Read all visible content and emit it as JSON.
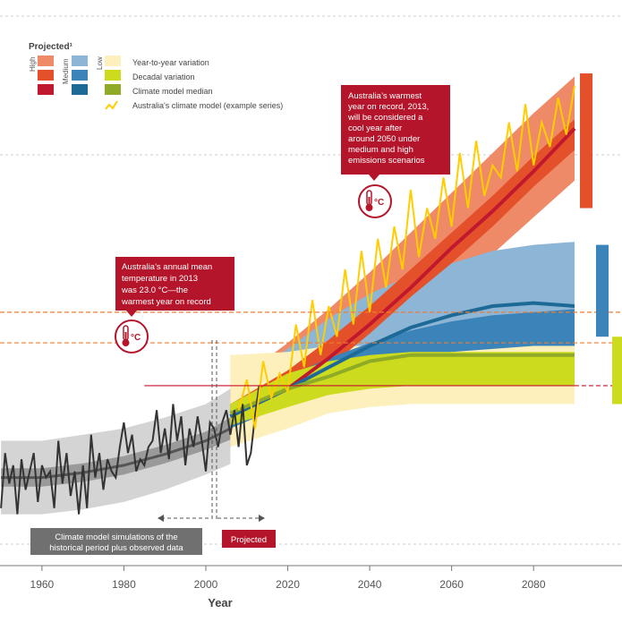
{
  "chart_data": {
    "type": "line",
    "xlabel": "Year",
    "ylabel": "",
    "x_ticks": [
      1960,
      1980,
      2000,
      2020,
      2040,
      2060,
      2080
    ],
    "xlim": [
      1955,
      2100
    ],
    "ylim": [
      20.5,
      27.5
    ],
    "reference_lines": [
      {
        "name": "2013 record",
        "value": 23.0,
        "color": "#c8102e"
      },
      {
        "name": "upper dashed",
        "value": 24.2,
        "color": "#f07d32"
      },
      {
        "name": "lower dashed",
        "value": 23.7,
        "color": "#f07d32"
      }
    ],
    "colors": {
      "high_light": "#ef8a68",
      "high_mid": "#e4502a",
      "high_dark": "#c0182e",
      "med_light": "#8db5d6",
      "med_mid": "#3a84b9",
      "med_dark": "#1e6a96",
      "low_light": "#fdf0bd",
      "low_mid": "#cddb1e",
      "low_dark": "#8faa26",
      "hist_light": "#d4d4d4",
      "hist_mid": "#9a9a9a",
      "hist_dark": "#555555",
      "example": "#ffcd00",
      "observed": "#333333"
    },
    "historical": {
      "years": [
        1950,
        1960,
        1970,
        1980,
        1990,
        2000,
        2006
      ],
      "median": [
        21.5,
        21.5,
        21.58,
        21.7,
        21.88,
        22.1,
        22.3
      ],
      "decadal_low": [
        21.35,
        21.35,
        21.43,
        21.55,
        21.73,
        21.95,
        22.12
      ],
      "decadal_high": [
        21.65,
        21.65,
        21.73,
        21.85,
        22.03,
        22.25,
        22.48
      ],
      "annual_low": [
        20.9,
        20.9,
        20.98,
        21.1,
        21.3,
        21.55,
        21.72
      ],
      "annual_high": [
        22.1,
        22.1,
        22.2,
        22.3,
        22.48,
        22.7,
        22.95
      ]
    },
    "observed": {
      "years": [
        1950,
        1951,
        1952,
        1953,
        1954,
        1955,
        1956,
        1957,
        1958,
        1959,
        1960,
        1961,
        1962,
        1963,
        1964,
        1965,
        1966,
        1967,
        1968,
        1969,
        1970,
        1971,
        1972,
        1973,
        1974,
        1975,
        1976,
        1977,
        1978,
        1979,
        1980,
        1981,
        1982,
        1983,
        1984,
        1985,
        1986,
        1987,
        1988,
        1989,
        1990,
        1991,
        1992,
        1993,
        1994,
        1995,
        1996,
        1997,
        1998,
        1999,
        2000,
        2001,
        2002,
        2003,
        2004,
        2005,
        2006,
        2007,
        2008,
        2009,
        2010,
        2011,
        2012,
        2013
      ],
      "values": [
        21.0,
        21.9,
        21.4,
        21.7,
        20.9,
        21.8,
        21.3,
        21.6,
        21.9,
        21.1,
        21.7,
        21.5,
        21.6,
        21.0,
        22.1,
        21.4,
        21.9,
        21.2,
        21.6,
        20.9,
        21.7,
        21.0,
        22.2,
        21.5,
        21.9,
        21.3,
        21.8,
        21.6,
        21.5,
        22.0,
        22.4,
        21.9,
        22.2,
        21.6,
        21.8,
        21.7,
        22.0,
        22.1,
        22.6,
        21.9,
        22.3,
        21.8,
        22.7,
        22.1,
        22.5,
        21.7,
        22.3,
        22.0,
        22.5,
        22.1,
        21.6,
        22.4,
        22.3,
        22.0,
        22.4,
        22.6,
        22.2,
        22.6,
        22.0,
        22.7,
        21.7,
        21.9,
        22.5,
        23.0
      ]
    },
    "projections": {
      "years": [
        2006,
        2020,
        2030,
        2040,
        2050,
        2060,
        2070,
        2080,
        2090
      ],
      "high": {
        "annual_low": [
          22.0,
          22.4,
          22.85,
          23.4,
          23.95,
          24.55,
          25.15,
          25.75,
          26.35
        ],
        "annual_high": [
          23.0,
          23.7,
          24.25,
          24.85,
          25.5,
          26.15,
          26.8,
          27.45,
          28.05
        ],
        "decadal_low": [
          22.3,
          22.8,
          23.3,
          23.85,
          24.45,
          25.0,
          25.6,
          26.25,
          26.85
        ],
        "decadal_high": [
          22.7,
          23.25,
          23.75,
          24.3,
          24.9,
          25.5,
          26.1,
          26.75,
          27.35
        ],
        "median": [
          22.5,
          22.95,
          23.45,
          24.0,
          24.6,
          25.25,
          25.85,
          26.5,
          27.2
        ]
      },
      "medium": {
        "annual_low": [
          22.0,
          22.35,
          22.65,
          22.9,
          23.05,
          23.15,
          23.2,
          23.25,
          23.25
        ],
        "annual_high": [
          23.0,
          23.6,
          24.1,
          24.5,
          24.8,
          25.0,
          25.2,
          25.3,
          25.35
        ],
        "decadal_low": [
          22.3,
          22.7,
          23.0,
          23.25,
          23.4,
          23.55,
          23.6,
          23.65,
          23.65
        ],
        "decadal_high": [
          22.7,
          23.15,
          23.45,
          23.7,
          23.9,
          24.05,
          24.15,
          24.2,
          24.25
        ],
        "median": [
          22.5,
          22.95,
          23.3,
          23.65,
          23.95,
          24.15,
          24.3,
          24.35,
          24.3
        ]
      },
      "low": {
        "annual_low": [
          22.0,
          22.3,
          22.55,
          22.65,
          22.7,
          22.7,
          22.7,
          22.7,
          22.7
        ],
        "annual_high": [
          23.5,
          23.55,
          23.65,
          23.65,
          23.7,
          23.7,
          23.7,
          23.7,
          23.7
        ],
        "decadal_low": [
          22.35,
          22.65,
          22.85,
          22.95,
          23.0,
          23.0,
          23.0,
          23.0,
          23.0
        ],
        "decadal_high": [
          22.7,
          23.2,
          23.4,
          23.5,
          23.55,
          23.55,
          23.55,
          23.55,
          23.55
        ],
        "median": [
          22.55,
          22.95,
          23.15,
          23.4,
          23.5,
          23.5,
          23.5,
          23.5,
          23.5
        ]
      }
    },
    "example_series": {
      "years": [
        2008,
        2010,
        2012,
        2014,
        2016,
        2018,
        2020,
        2022,
        2024,
        2026,
        2028,
        2030,
        2032,
        2034,
        2036,
        2038,
        2040,
        2042,
        2044,
        2046,
        2048,
        2050,
        2052,
        2054,
        2056,
        2058,
        2060,
        2062,
        2064,
        2066,
        2068,
        2070,
        2072,
        2074,
        2076,
        2078,
        2080,
        2082,
        2084,
        2086,
        2088,
        2090
      ],
      "values": [
        22.6,
        23.1,
        22.3,
        23.4,
        22.8,
        23.2,
        22.9,
        24.0,
        23.3,
        24.4,
        23.5,
        24.3,
        23.8,
        24.9,
        24.0,
        25.2,
        24.2,
        25.4,
        24.6,
        25.6,
        24.9,
        26.2,
        25.1,
        25.9,
        25.4,
        26.4,
        25.6,
        26.8,
        25.9,
        27.0,
        26.1,
        26.6,
        26.4,
        27.3,
        26.5,
        27.6,
        26.6,
        27.3,
        26.9,
        27.7,
        27.1,
        27.9
      ]
    },
    "right_bars": [
      {
        "name": "high",
        "low": 25.9,
        "high": 28.1,
        "color": "#e4502a"
      },
      {
        "name": "medium",
        "low": 23.8,
        "high": 25.3,
        "color": "#3a84b9"
      },
      {
        "name": "low",
        "low": 22.7,
        "high": 23.8,
        "color": "#cddb1e"
      }
    ]
  },
  "legend": {
    "title": "Projected¹",
    "scenario_labels": [
      "High",
      "Medium",
      "Low"
    ],
    "items": [
      "Year-to-year variation",
      "Decadal variation",
      "Climate model median",
      "Australia's climate model (example series)"
    ]
  },
  "callouts": {
    "right": [
      "Australia’s warmest",
      "year on record, 2013,",
      "will be considered a",
      "cool year after",
      "around 2050 under",
      "medium and high",
      "emissions scenarios"
    ],
    "left": [
      "Australia’s annual mean",
      "temperature in 2013",
      "was 23.0 °C—the",
      "warmest year on record"
    ],
    "thermometer_label": "°C"
  },
  "bottom_labels": {
    "historical": [
      "Climate model simulations of the",
      "historical period plus observed data"
    ],
    "projected": "Projected"
  }
}
